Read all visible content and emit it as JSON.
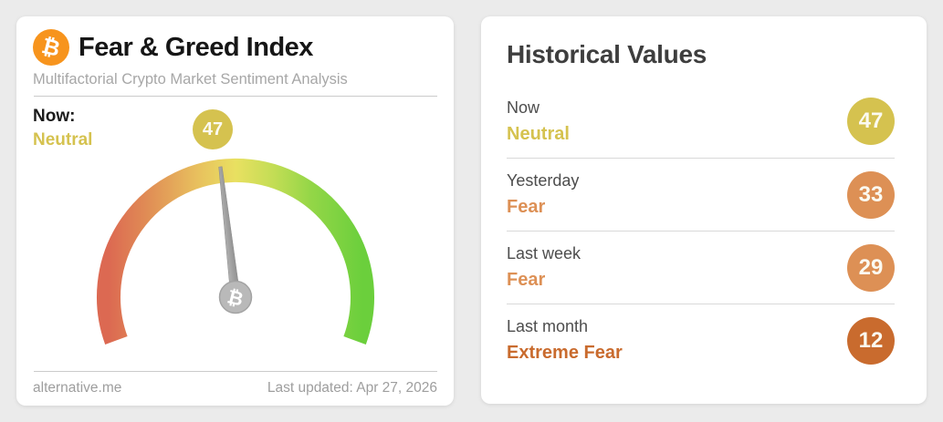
{
  "left_card": {
    "title": "Fear & Greed Index",
    "subtitle": "Multifactorial Crypto Market Sentiment Analysis",
    "bitcoin_symbol": "₿",
    "now_label": "Now:",
    "now_value": "Neutral",
    "gauge": {
      "type": "gauge",
      "value": 47,
      "min": 0,
      "max": 100,
      "classification": "Neutral"
    },
    "footer_left": "alternative.me",
    "footer_right": "Last updated: Apr 27, 2026"
  },
  "right_card": {
    "title": "Historical Values",
    "rows": [
      {
        "label": "Now",
        "classification": "Neutral",
        "value": "47",
        "color": "#d5c24f"
      },
      {
        "label": "Yesterday",
        "classification": "Fear",
        "value": "33",
        "color": "#dd9055"
      },
      {
        "label": "Last week",
        "classification": "Fear",
        "value": "29",
        "color": "#dd9055"
      },
      {
        "label": "Last month",
        "classification": "Extreme Fear",
        "value": "12",
        "color": "#c96b2e"
      }
    ]
  },
  "colors": {
    "page_background": "#ebebeb",
    "neutral": "#d5c24f",
    "fear": "#dd9055",
    "extreme_fear": "#c96b2e",
    "bitcoin_orange": "#f7941d",
    "needle_gray": "#a2a2a2",
    "gauge_gradient": [
      "#dc6952",
      "#e08c55",
      "#e8c05e",
      "#e9e061",
      "#c3dd55",
      "#93d647",
      "#6bcf3c"
    ]
  }
}
